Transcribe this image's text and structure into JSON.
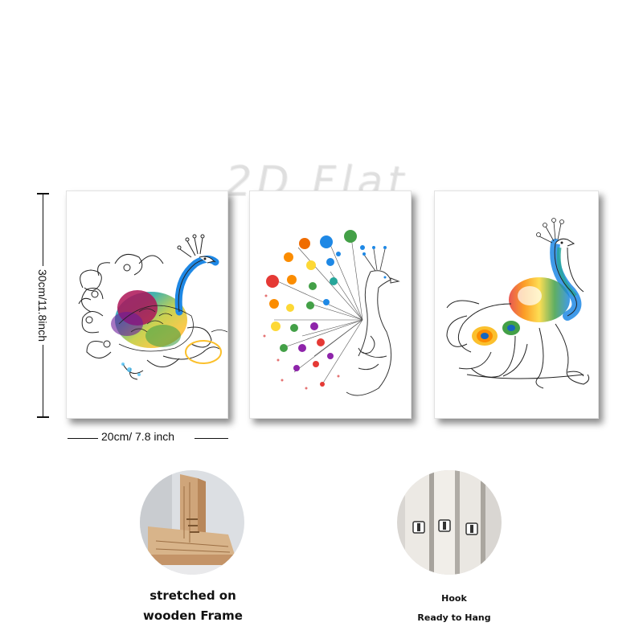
{
  "watermark": "2D Flat",
  "dimensions": {
    "height_label": "30cm/11.8inch",
    "width_label": "20cm/ 7.8 inch"
  },
  "paintings": [
    {
      "subject": "peacock-side-view"
    },
    {
      "subject": "peacock-dotted-fan"
    },
    {
      "subject": "peacock-standing"
    }
  ],
  "features": [
    {
      "icon": "wooden-frame-corner",
      "lines": [
        "stretched on",
        "wooden Frame"
      ]
    },
    {
      "icon": "canvas-hooks",
      "lines": [
        "Hook",
        "Ready to Hang"
      ]
    }
  ],
  "colors": {
    "shadow": "#555555",
    "wood": "#d8b48a",
    "rainbow": [
      "#e53935",
      "#fb8c00",
      "#fdd835",
      "#43a047",
      "#1e88e5",
      "#8e24aa"
    ]
  }
}
